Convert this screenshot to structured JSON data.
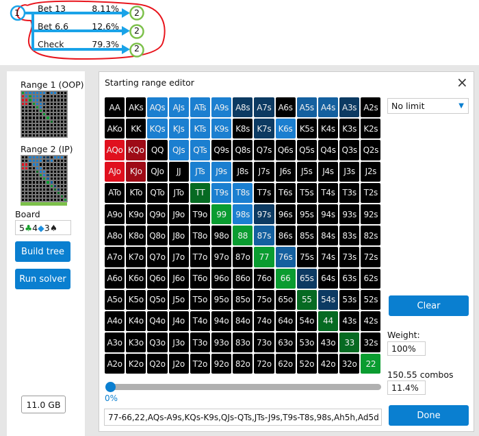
{
  "tree": {
    "root": "1",
    "actions": [
      {
        "label": "Bet 13",
        "pct": "8.11%",
        "node": "2"
      },
      {
        "label": "Bet 6.6",
        "pct": "12.6%",
        "node": "2"
      },
      {
        "label": "Check",
        "pct": "79.3%",
        "node": "2"
      }
    ]
  },
  "sidebar": {
    "range1_label": "Range 1 (OOP)",
    "range2_label": "Range 2 (IP)",
    "board_label": "Board",
    "board_cards": [
      {
        "rank": "5",
        "suit": "♣",
        "color": "#18a02c"
      },
      {
        "rank": "4",
        "suit": "◆",
        "color": "#1e90e0"
      },
      {
        "rank": "3",
        "suit": "♠",
        "color": "#222222"
      }
    ],
    "build_tree": "Build tree",
    "run_solver": "Run solver",
    "memory": "11.0 GB",
    "range1_grid": [
      "gbbbbbbkbbkkk",
      "rbgbbbkkkkkkk",
      "rrgbbdkkkkkkk",
      "rrkgbbdkkkkkk",
      "kkkkgbkkkkkkk",
      "kkkkkgkkkkkkk",
      "kkkkkkgkkkkkk",
      "kkkkkkkgkkkkk",
      "kkkkkkkkGkkkk",
      "kkkkkkkkkkkkk",
      "kkkkkkkkkkkkk",
      "kkkkkkkkkkkkk",
      "kkkkkkkkkkkkk"
    ],
    "range2_grid": [
      "kkbbbbddkbbbk",
      "kkbbbbkdbkkkk",
      "rrkbbkkkkkkkk",
      "rrkkbbkkkkkkk",
      "kkkkGbbkkkkkk",
      "kkkkkgbdkkkkk",
      "kkkkkkgmkkkkk",
      "kkkkkkkgmkkkk",
      "kkkkkkkkgdkkk",
      "kkkkkkkkkGdkk",
      "kkkkkkkkkkGkk",
      "kkkkkkkkkkkGk",
      "kkkkkkkkkkkkg"
    ]
  },
  "dialog": {
    "title": "Starting range editor",
    "close_icon": "close-icon",
    "limit_select": "No limit",
    "clear": "Clear",
    "weight_label": "Weight:",
    "weight_value": "100%",
    "combos_label": "150.55 combos",
    "combos_pct": "11.4%",
    "slider_value": "0%",
    "slider_fraction": 0,
    "range_text": "77-66,22,AQs-A9s,KQs-K9s,QJs-QTs,JTs-J9s,T9s-T8s,98s,Ah5h,Ad5d",
    "done": "Done",
    "ranks": [
      "A",
      "K",
      "Q",
      "J",
      "T",
      "9",
      "8",
      "7",
      "6",
      "5",
      "4",
      "3",
      "2"
    ],
    "cell_colors": [
      "kkbbbbddkmmdk",
      "kkbbbbkdbkkkk",
      "rRkbbkkkkkkkk",
      "rRkkbbkkkkkkk",
      "kkkkGbbkkkkkk",
      "kkkkkgbdkkkkk",
      "kkkkkkgmkkkkk",
      "kkkkkkkgmkkkk",
      "kkkkkkkkgdkkk",
      "kkkkkkkkkGdkk",
      "kkkkkkkkkkGkk",
      "kkkkkkkkkkkGk",
      "kkkkkkkkkkkkg"
    ]
  },
  "colors": {
    "k": "#000000",
    "b": "#1b7fd0",
    "m": "#14609f",
    "d": "#0c3a62",
    "g": "#0a9c30",
    "G": "#066a22",
    "r": "#e0101e",
    "R": "#9e0b16",
    "accent": "#0a7fd0",
    "annotation": "#e8141c",
    "root_circle": "#1aa3e8",
    "child_circle": "#7cc04a"
  }
}
